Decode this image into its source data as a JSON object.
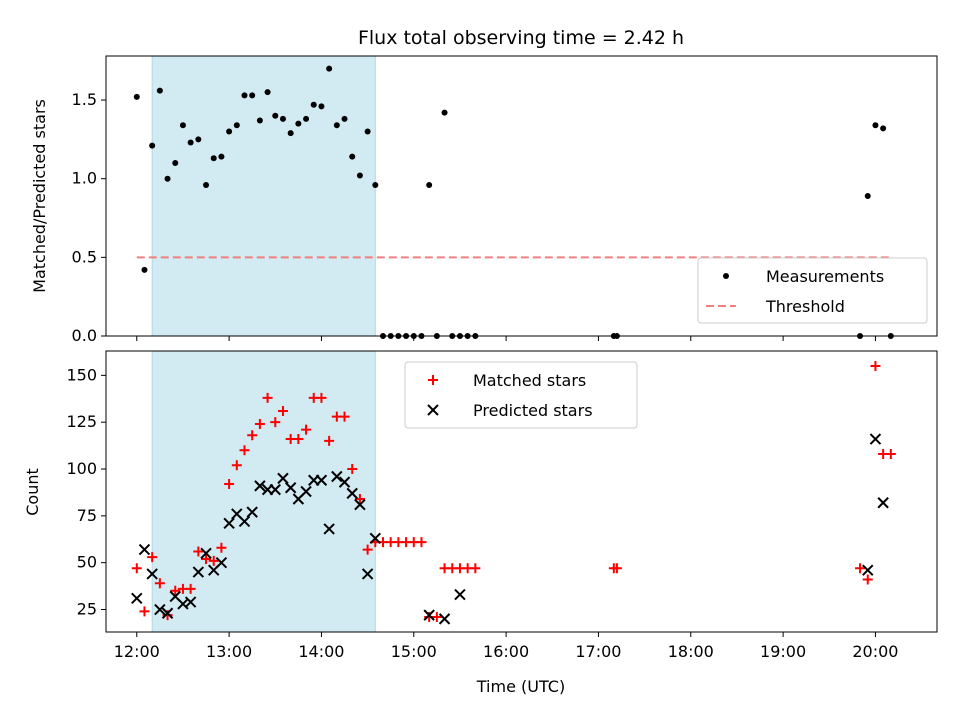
{
  "chart_data": [
    {
      "type": "scatter",
      "title": "Flux total observing time = 2.42 h",
      "ylabel": "Matched/Predicted stars",
      "xlabel": "",
      "xlim": [
        "11:40",
        "20:40"
      ],
      "ylim": [
        0,
        1.78
      ],
      "yticks": [
        0.0,
        0.5,
        1.0,
        1.5
      ],
      "ytick_labels": [
        "0.0",
        "0.5",
        "1.0",
        "1.5"
      ],
      "shaded_span": [
        "12:10",
        "14:35"
      ],
      "shaded_color": "#add8e6",
      "legend_position": "lower-right",
      "series": [
        {
          "name": "Measurements",
          "marker": "dot",
          "color": "#000000",
          "x": [
            "12:00",
            "12:05",
            "12:10",
            "12:15",
            "12:20",
            "12:25",
            "12:30",
            "12:35",
            "12:40",
            "12:45",
            "12:50",
            "12:55",
            "13:00",
            "13:05",
            "13:10",
            "13:15",
            "13:20",
            "13:25",
            "13:30",
            "13:35",
            "13:40",
            "13:45",
            "13:50",
            "13:55",
            "14:00",
            "14:05",
            "14:10",
            "14:15",
            "14:20",
            "14:25",
            "14:30",
            "14:35",
            "14:40",
            "14:45",
            "14:50",
            "14:55",
            "15:00",
            "15:05",
            "15:10",
            "15:15",
            "15:20",
            "15:25",
            "15:30",
            "15:35",
            "15:40",
            "17:10",
            "17:12",
            "19:50",
            "19:55",
            "20:00",
            "20:05",
            "20:10"
          ],
          "y": [
            1.52,
            0.42,
            1.21,
            1.56,
            1.0,
            1.1,
            1.34,
            1.23,
            1.25,
            0.96,
            1.13,
            1.14,
            1.3,
            1.34,
            1.53,
            1.53,
            1.37,
            1.55,
            1.4,
            1.38,
            1.29,
            1.35,
            1.38,
            1.47,
            1.46,
            1.7,
            1.34,
            1.38,
            1.14,
            1.02,
            1.3,
            0.96,
            0.0,
            0.0,
            0.0,
            0.0,
            0.0,
            0.0,
            0.96,
            0.0,
            1.42,
            0.0,
            0.0,
            0.0,
            0.0,
            0.0,
            0.0,
            0.0,
            0.89,
            1.34,
            1.32,
            0.0
          ]
        },
        {
          "name": "Threshold",
          "line": "dashed",
          "color": "#f08080",
          "x": [
            "12:00",
            "20:10"
          ],
          "y": [
            0.5,
            0.5
          ]
        }
      ]
    },
    {
      "type": "scatter",
      "title": "",
      "ylabel": "Count",
      "xlabel": "Time (UTC)",
      "xlim": [
        "11:40",
        "20:40"
      ],
      "ylim": [
        13,
        163
      ],
      "yticks": [
        25,
        50,
        75,
        100,
        125,
        150
      ],
      "ytick_labels": [
        "25",
        "50",
        "75",
        "100",
        "125",
        "150"
      ],
      "xticks": [
        "12:00",
        "13:00",
        "14:00",
        "15:00",
        "16:00",
        "17:00",
        "18:00",
        "19:00",
        "20:00"
      ],
      "xtick_labels": [
        "12:00",
        "13:00",
        "14:00",
        "15:00",
        "16:00",
        "17:00",
        "18:00",
        "19:00",
        "20:00"
      ],
      "shaded_span": [
        "12:10",
        "14:35"
      ],
      "shaded_color": "#add8e6",
      "legend_position": "upper-center",
      "series": [
        {
          "name": "Matched stars",
          "marker": "plus",
          "color": "#ff0000",
          "x": [
            "12:00",
            "12:05",
            "12:10",
            "12:15",
            "12:20",
            "12:25",
            "12:30",
            "12:35",
            "12:40",
            "12:45",
            "12:50",
            "12:55",
            "13:00",
            "13:05",
            "13:10",
            "13:15",
            "13:20",
            "13:25",
            "13:30",
            "13:35",
            "13:40",
            "13:45",
            "13:50",
            "13:55",
            "14:00",
            "14:05",
            "14:10",
            "14:15",
            "14:20",
            "14:25",
            "14:30",
            "14:35",
            "14:40",
            "14:45",
            "14:50",
            "14:55",
            "15:00",
            "15:05",
            "15:10",
            "15:15",
            "15:20",
            "15:25",
            "15:30",
            "15:35",
            "15:40",
            "17:10",
            "17:12",
            "19:50",
            "19:55",
            "20:00",
            "20:05",
            "20:10"
          ],
          "y": [
            47,
            24,
            53,
            39,
            22,
            35,
            36,
            36,
            56,
            52,
            51,
            58,
            92,
            102,
            110,
            118,
            124,
            138,
            125,
            131,
            116,
            116,
            121,
            138,
            138,
            115,
            128,
            128,
            100,
            84,
            57,
            61,
            61,
            61,
            61,
            61,
            61,
            61,
            21,
            21,
            47,
            47,
            47,
            47,
            47,
            47,
            47,
            47,
            41,
            155,
            108,
            108
          ]
        },
        {
          "name": "Predicted stars",
          "marker": "x",
          "color": "#000000",
          "x": [
            "12:00",
            "12:05",
            "12:10",
            "12:15",
            "12:20",
            "12:25",
            "12:30",
            "12:35",
            "12:40",
            "12:45",
            "12:50",
            "12:55",
            "13:00",
            "13:05",
            "13:10",
            "13:15",
            "13:20",
            "13:25",
            "13:30",
            "13:35",
            "13:40",
            "13:45",
            "13:50",
            "13:55",
            "14:00",
            "14:05",
            "14:10",
            "14:15",
            "14:20",
            "14:25",
            "14:30",
            "14:35",
            "15:10",
            "15:20",
            "15:30",
            "19:55",
            "20:00",
            "20:05"
          ],
          "y": [
            31,
            57,
            44,
            25,
            23,
            32,
            28,
            29,
            45,
            55,
            46,
            50,
            71,
            76,
            72,
            77,
            91,
            89,
            89,
            95,
            90,
            84,
            88,
            94,
            94,
            68,
            96,
            93,
            87,
            81,
            44,
            63,
            22,
            20,
            33,
            46,
            116,
            82
          ]
        }
      ]
    }
  ]
}
